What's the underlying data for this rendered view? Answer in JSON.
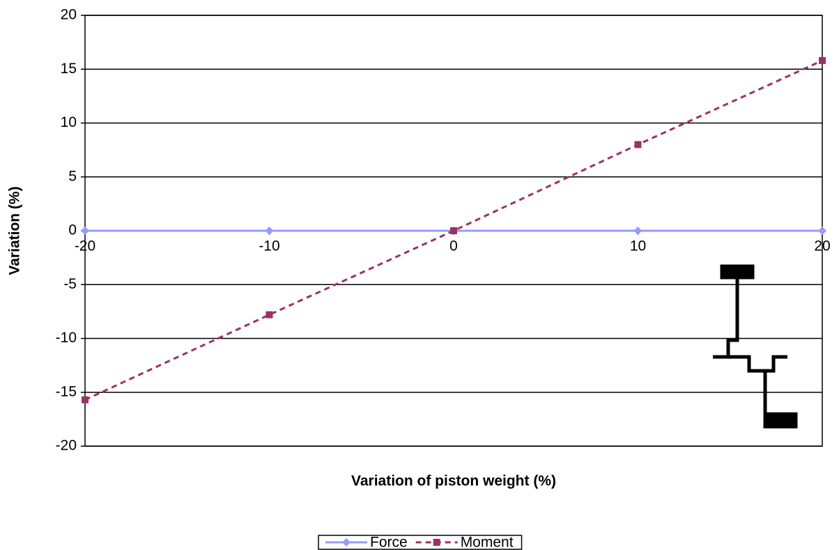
{
  "chart_data": {
    "type": "line",
    "xlabel": "Variation of piston weight (%)",
    "ylabel": "Variation (%)",
    "x": [
      -20,
      -10,
      0,
      10,
      20
    ],
    "series": [
      {
        "name": "Force",
        "color": "#9999ff",
        "marker": "diamond",
        "dash": false,
        "values": [
          0,
          0,
          0,
          0,
          0
        ]
      },
      {
        "name": "Moment",
        "color": "#993366",
        "marker": "square",
        "dash": true,
        "values": [
          -15.7,
          -7.8,
          0,
          8.0,
          15.8
        ]
      }
    ],
    "xlim": [
      -20,
      20
    ],
    "xticks": [
      -20,
      -10,
      0,
      10,
      20
    ],
    "ylim": [
      -20,
      20
    ],
    "yticks": [
      -20,
      -15,
      -10,
      -5,
      0,
      5,
      10,
      15,
      20
    ],
    "grid": true,
    "legend": "bottom"
  }
}
